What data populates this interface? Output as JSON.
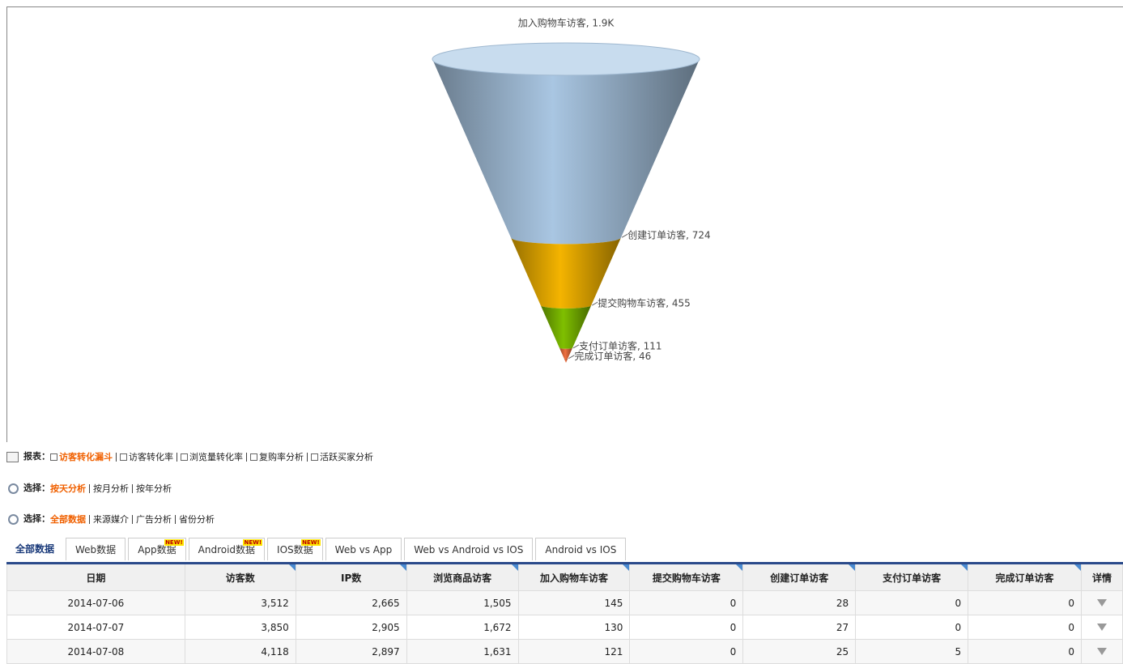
{
  "chart_data": {
    "type": "funnel",
    "labels": [
      "加入购物车访客, 1.9K",
      "创建订单访客, 724",
      "提交购物车访客, 455",
      "支付订单访客, 111",
      "完成订单访客, 46"
    ],
    "values": [
      1900,
      724,
      455,
      111,
      46
    ],
    "colors": [
      "#a9c6e2",
      "#f4b400",
      "#7fbf00",
      "#f07040"
    ]
  },
  "nav": [
    {
      "title": "报表：",
      "items": [
        "访客转化漏斗",
        "访客转化率",
        "浏览量转化率",
        "复购率分析",
        "活跃买家分析"
      ],
      "active": 0,
      "icon": "box"
    },
    {
      "title": "选择：",
      "items": [
        "按天分析",
        "按月分析",
        "按年分析"
      ],
      "active": 0,
      "icon": "search"
    },
    {
      "title": "选择：",
      "items": [
        "全部数据",
        "来源媒介",
        "广告分析",
        "省份分析"
      ],
      "active": 0,
      "icon": "search"
    }
  ],
  "tabs": {
    "items": [
      "全部数据",
      "Web数据",
      "App数据",
      "Android数据",
      "IOS数据",
      "Web vs App",
      "Web vs Android vs IOS",
      "Android vs IOS"
    ],
    "badge": "NEW!",
    "badged": [
      2,
      3,
      4
    ],
    "active": 0
  },
  "table": {
    "headers": [
      "日期",
      "访客数",
      "IP数",
      "浏览商品访客",
      "加入购物车访客",
      "提交购物车访客",
      "创建订单访客",
      "支付订单访客",
      "完成订单访客",
      "详情"
    ],
    "rows": [
      [
        "2014-07-06",
        "3,512",
        "2,665",
        "1,505",
        "145",
        "0",
        "28",
        "0",
        "0"
      ],
      [
        "2014-07-07",
        "3,850",
        "2,905",
        "1,672",
        "130",
        "0",
        "27",
        "0",
        "0"
      ],
      [
        "2014-07-08",
        "4,118",
        "2,897",
        "1,631",
        "121",
        "0",
        "25",
        "5",
        "0"
      ]
    ]
  }
}
